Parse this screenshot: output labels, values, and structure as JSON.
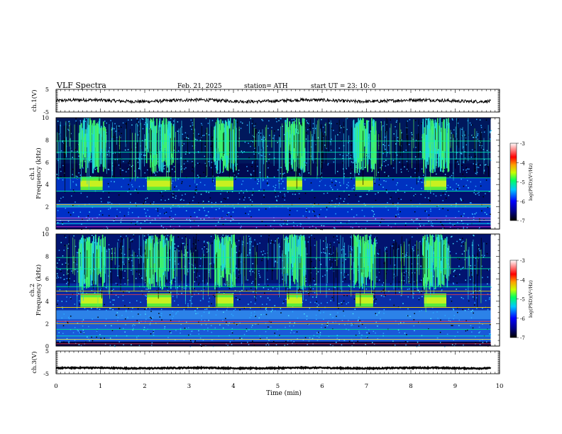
{
  "chart_data": {
    "type": "heatmap",
    "title": "VLF  Spectra",
    "date": "Feb. 21, 2025",
    "station": "station= ATH",
    "start": "start  UT  =    23: 10: 0",
    "xlabel": "Time  (min)",
    "xlim": [
      0,
      10
    ],
    "x_ticks": [
      "0",
      "1",
      "2",
      "3",
      "4",
      "5",
      "6",
      "7",
      "8",
      "9",
      "10"
    ],
    "panels": [
      {
        "id": "ch1-waveform",
        "ylabel": "ch.1(V)",
        "ylim": [
          -5,
          5
        ],
        "y_ticks": [
          "5",
          "-5"
        ],
        "series": [
          {
            "x": [
              0,
              9.8
            ],
            "y": [
              0,
              0
            ]
          }
        ]
      },
      {
        "id": "ch1-spectrogram",
        "ylabel": "ch.1\nFrequency  (kHz)",
        "ylim": [
          0,
          10
        ],
        "y_ticks": [
          "0",
          "2",
          "4",
          "6",
          "8",
          "10"
        ],
        "colorbar": {
          "label": "log(PSD)(V²/Hz)",
          "range": [
            -7,
            -3
          ],
          "ticks": [
            "-3",
            "-4",
            "-5",
            "-6",
            "-7"
          ]
        },
        "x_end": 9.8
      },
      {
        "id": "ch2-spectrogram",
        "ylabel": "ch.2\nFrequency  (kHz)",
        "ylim": [
          0,
          10
        ],
        "y_ticks": [
          "0",
          "2",
          "4",
          "6",
          "8",
          "10"
        ],
        "colorbar": {
          "label": "log(PSD)(V²/Hz)",
          "range": [
            -7,
            -3
          ],
          "ticks": [
            "-3",
            "-4",
            "-5",
            "-6",
            "-7"
          ]
        },
        "x_end": 9.8
      },
      {
        "id": "ch3-waveform",
        "ylabel": "ch.3(V)",
        "ylim": [
          -5,
          5
        ],
        "y_ticks": [
          "5",
          "-5"
        ],
        "series": [
          {
            "x": [
              0,
              9.8
            ],
            "y": [
              -2.5,
              -2.5
            ]
          }
        ]
      }
    ],
    "bursts": [
      {
        "start": 0.55,
        "end": 1.05,
        "fmin": 3.5,
        "fmax": 4.7
      },
      {
        "start": 2.05,
        "end": 2.6,
        "fmin": 3.5,
        "fmax": 4.7
      },
      {
        "start": 3.6,
        "end": 4.0,
        "fmin": 3.5,
        "fmax": 4.7
      },
      {
        "start": 5.2,
        "end": 5.55,
        "fmin": 3.5,
        "fmax": 4.7
      },
      {
        "start": 6.75,
        "end": 7.15,
        "fmin": 3.5,
        "fmax": 4.7
      },
      {
        "start": 8.3,
        "end": 8.8,
        "fmin": 3.5,
        "fmax": 4.7
      }
    ]
  }
}
